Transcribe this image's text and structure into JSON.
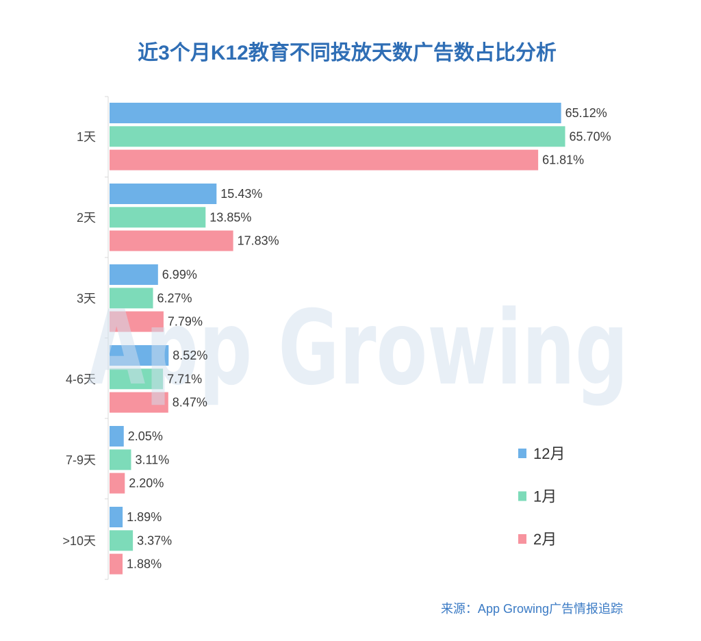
{
  "chart_data": {
    "type": "bar",
    "orientation": "horizontal",
    "title": "近3个月K12教育不同投放天数广告数占比分析",
    "xlabel": "",
    "ylabel": "",
    "categories": [
      "1天",
      "2天",
      "3天",
      "4-6天",
      "7-9天",
      ">10天"
    ],
    "series": [
      {
        "name": "12月",
        "color": "#6db1e8",
        "values": [
          65.12,
          15.43,
          6.99,
          8.52,
          2.05,
          1.89
        ]
      },
      {
        "name": "1月",
        "color": "#7ddbb9",
        "values": [
          65.7,
          13.85,
          6.27,
          7.71,
          3.11,
          3.37
        ]
      },
      {
        "name": "2月",
        "color": "#f7939e",
        "values": [
          61.81,
          17.83,
          7.79,
          8.47,
          2.2,
          1.88
        ]
      }
    ],
    "unit": "%",
    "grid": false,
    "legend": "bottom-right"
  },
  "source": "来源：App Growing广告情报追踪",
  "watermark": "App Growing",
  "colors": {
    "title": "#2f6eb5",
    "source": "#3a7ac4",
    "axis": "#d9d9d9"
  }
}
